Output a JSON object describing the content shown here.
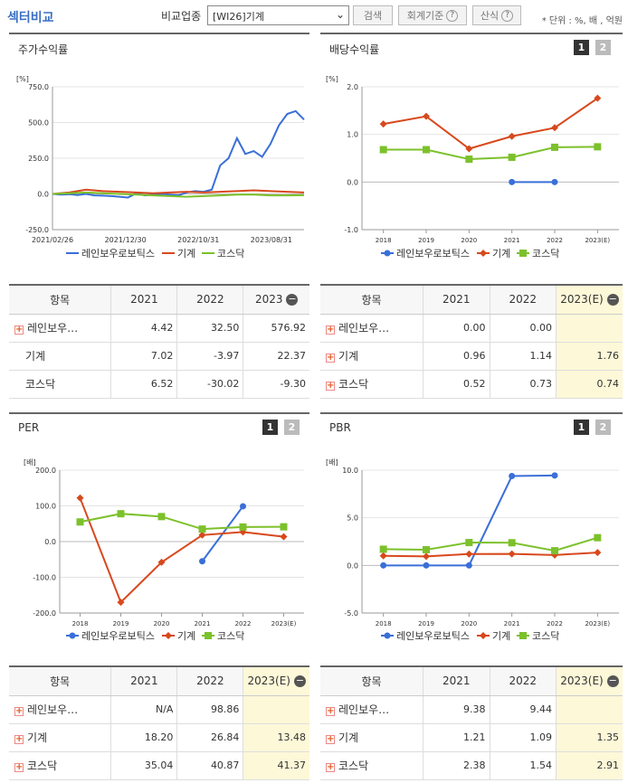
{
  "header": {
    "section_title": "섹터비교",
    "industry_label": "비교업종",
    "industry_select": "[WI26]기계",
    "search_button": "검색",
    "accounting_button": "회계기준",
    "formula_button": "산식",
    "unit_note": "* 단위 : %, 배 , 억원",
    "help_glyph": "?"
  },
  "panels": {
    "stock": {
      "title": "주가수익률",
      "unit": "[%]"
    },
    "dividend": {
      "title": "배당수익률",
      "unit": "[%]",
      "page1": "1",
      "page2": "2"
    },
    "per": {
      "title": "PER",
      "unit": "[배]",
      "page1": "1",
      "page2": "2"
    },
    "pbr": {
      "title": "PBR",
      "unit": "[배]",
      "page1": "1",
      "page2": "2"
    }
  },
  "legend": {
    "s1": "레인보우로보틱스",
    "s2": "기계",
    "s3": "코스닥"
  },
  "colors": {
    "s1": "#3a6fd8",
    "s2": "#d8481c",
    "s3": "#7cc12b"
  },
  "chart_data": [
    {
      "type": "line",
      "title": "주가수익률",
      "x_ticks": [
        "2021/02/26",
        "2021/12/30",
        "2022/10/31",
        "2023/08/31"
      ],
      "y_ticks": [
        "750.0",
        "500.0",
        "250.0",
        "0.0",
        "-250.0"
      ],
      "ylim": [
        -250,
        750
      ],
      "series": [
        {
          "name": "레인보우로보틱스",
          "x": [
            0,
            2,
            4,
            6,
            8,
            10,
            12,
            14,
            16,
            18,
            20,
            22,
            24,
            26,
            28,
            30,
            32,
            34,
            36,
            38,
            40,
            42,
            44,
            46,
            48,
            50,
            52,
            54,
            56,
            58,
            60
          ],
          "values": [
            0,
            -5,
            -2,
            -8,
            0,
            -10,
            -12,
            -15,
            -20,
            -25,
            5,
            -10,
            -5,
            0,
            -5,
            -10,
            10,
            20,
            15,
            30,
            200,
            250,
            390,
            280,
            300,
            260,
            350,
            480,
            560,
            580,
            520
          ]
        },
        {
          "name": "기계",
          "x": [
            0,
            4,
            8,
            12,
            16,
            20,
            24,
            28,
            32,
            36,
            40,
            44,
            48,
            52,
            56,
            60
          ],
          "values": [
            0,
            10,
            30,
            20,
            15,
            10,
            5,
            10,
            15,
            10,
            15,
            20,
            25,
            20,
            15,
            10
          ]
        },
        {
          "name": "코스닥",
          "x": [
            0,
            4,
            8,
            12,
            16,
            20,
            24,
            28,
            32,
            36,
            40,
            44,
            48,
            52,
            56,
            60
          ],
          "values": [
            0,
            5,
            10,
            5,
            0,
            -5,
            -10,
            -15,
            -20,
            -15,
            -10,
            -5,
            -5,
            -10,
            -10,
            -9
          ]
        }
      ]
    },
    {
      "type": "line",
      "title": "배당수익률",
      "categories": [
        "2018",
        "2019",
        "2020",
        "2021",
        "2022",
        "2023(E)"
      ],
      "y_ticks": [
        "2.0",
        "1.0",
        "0.0",
        "-1.0"
      ],
      "ylim": [
        -1,
        2
      ],
      "series": [
        {
          "name": "레인보우로보틱스",
          "values": [
            null,
            null,
            null,
            0.0,
            0.0,
            null
          ]
        },
        {
          "name": "기계",
          "values": [
            1.22,
            1.38,
            0.7,
            0.96,
            1.14,
            1.76
          ]
        },
        {
          "name": "코스닥",
          "values": [
            0.68,
            0.68,
            0.48,
            0.52,
            0.73,
            0.74
          ]
        }
      ]
    },
    {
      "type": "line",
      "title": "PER",
      "categories": [
        "2018",
        "2019",
        "2020",
        "2021",
        "2022",
        "2023(E)"
      ],
      "y_ticks": [
        "200.0",
        "100.0",
        "0.0",
        "-100.0",
        "-200.0"
      ],
      "ylim": [
        -200,
        200
      ],
      "series": [
        {
          "name": "레인보우로보틱스",
          "values": [
            null,
            null,
            null,
            -55,
            98.86,
            null
          ]
        },
        {
          "name": "기계",
          "values": [
            122,
            -170,
            -58,
            18.2,
            26.84,
            13.48
          ]
        },
        {
          "name": "코스닥",
          "values": [
            55,
            78,
            70,
            35.04,
            40.87,
            41.37
          ]
        }
      ]
    },
    {
      "type": "line",
      "title": "PBR",
      "categories": [
        "2018",
        "2019",
        "2020",
        "2021",
        "2022",
        "2023(E)"
      ],
      "y_ticks": [
        "10.0",
        "5.0",
        "0.0",
        "-5.0"
      ],
      "ylim": [
        -5,
        10
      ],
      "series": [
        {
          "name": "레인보우로보틱스",
          "values": [
            0,
            0,
            0,
            9.38,
            9.44,
            null
          ]
        },
        {
          "name": "기계",
          "values": [
            1.0,
            0.95,
            1.2,
            1.21,
            1.09,
            1.35
          ]
        },
        {
          "name": "코스닥",
          "values": [
            1.7,
            1.65,
            2.4,
            2.38,
            1.54,
            2.91
          ]
        }
      ]
    }
  ],
  "tables": {
    "stock": {
      "headers": [
        "항목",
        "2021",
        "2022",
        "2023"
      ],
      "rows": [
        {
          "name": "레인보우…",
          "v": [
            "4.42",
            "32.50",
            "576.92"
          ]
        },
        {
          "name": "기계",
          "v": [
            "7.02",
            "-3.97",
            "22.37"
          ]
        },
        {
          "name": "코스닥",
          "v": [
            "6.52",
            "-30.02",
            "-9.30"
          ]
        }
      ]
    },
    "dividend": {
      "headers": [
        "항목",
        "2021",
        "2022",
        "2023(E)"
      ],
      "rows": [
        {
          "name": "레인보우…",
          "v": [
            "0.00",
            "0.00",
            ""
          ]
        },
        {
          "name": "기계",
          "v": [
            "0.96",
            "1.14",
            "1.76"
          ]
        },
        {
          "name": "코스닥",
          "v": [
            "0.52",
            "0.73",
            "0.74"
          ]
        }
      ]
    },
    "per": {
      "headers": [
        "항목",
        "2021",
        "2022",
        "2023(E)"
      ],
      "rows": [
        {
          "name": "레인보우…",
          "v": [
            "N/A",
            "98.86",
            ""
          ]
        },
        {
          "name": "기계",
          "v": [
            "18.20",
            "26.84",
            "13.48"
          ]
        },
        {
          "name": "코스닥",
          "v": [
            "35.04",
            "40.87",
            "41.37"
          ]
        }
      ]
    },
    "pbr": {
      "headers": [
        "항목",
        "2021",
        "2022",
        "2023(E)"
      ],
      "rows": [
        {
          "name": "레인보우…",
          "v": [
            "9.38",
            "9.44",
            ""
          ]
        },
        {
          "name": "기계",
          "v": [
            "1.21",
            "1.09",
            "1.35"
          ]
        },
        {
          "name": "코스닥",
          "v": [
            "2.38",
            "1.54",
            "2.91"
          ]
        }
      ]
    }
  }
}
